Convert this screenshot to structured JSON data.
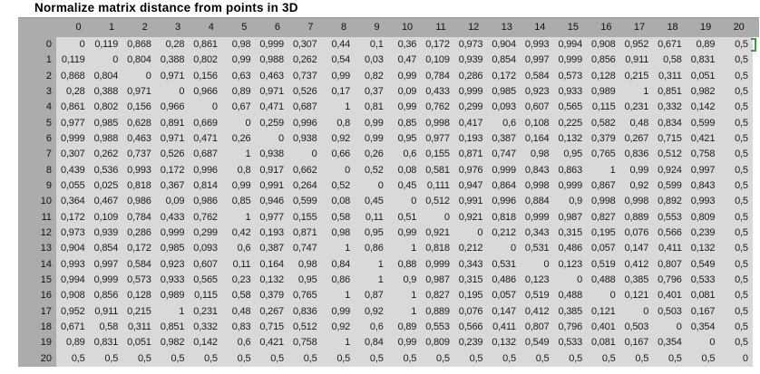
{
  "title": "Normalize matrix distance from points in 3D",
  "colors": {
    "header_bg": "#acacac",
    "body_bg": "#d9d9d9",
    "selection_green": "#3e9b47",
    "text": "#1a1a1a"
  },
  "table": {
    "col_headers": [
      "0",
      "1",
      "2",
      "3",
      "4",
      "5",
      "6",
      "7",
      "8",
      "9",
      "10",
      "11",
      "12",
      "13",
      "14",
      "15",
      "16",
      "17",
      "18",
      "19",
      "20"
    ],
    "row_headers": [
      "0",
      "1",
      "2",
      "3",
      "4",
      "5",
      "6",
      "7",
      "8",
      "9",
      "10",
      "11",
      "12",
      "13",
      "14",
      "15",
      "16",
      "17",
      "18",
      "19",
      "20"
    ],
    "rows": [
      [
        "0",
        "0,119",
        "0,868",
        "0,28",
        "0,861",
        "0,98",
        "0,999",
        "0,307",
        "0,44",
        "0,1",
        "0,36",
        "0,172",
        "0,973",
        "0,904",
        "0,993",
        "0,994",
        "0,908",
        "0,952",
        "0,671",
        "0,89",
        "0,5"
      ],
      [
        "0,119",
        "0",
        "0,804",
        "0,388",
        "0,802",
        "0,99",
        "0,988",
        "0,262",
        "0,54",
        "0,03",
        "0,47",
        "0,109",
        "0,939",
        "0,854",
        "0,997",
        "0,999",
        "0,856",
        "0,911",
        "0,58",
        "0,831",
        "0,5"
      ],
      [
        "0,868",
        "0,804",
        "0",
        "0,971",
        "0,156",
        "0,63",
        "0,463",
        "0,737",
        "0,99",
        "0,82",
        "0,99",
        "0,784",
        "0,286",
        "0,172",
        "0,584",
        "0,573",
        "0,128",
        "0,215",
        "0,311",
        "0,051",
        "0,5"
      ],
      [
        "0,28",
        "0,388",
        "0,971",
        "0",
        "0,966",
        "0,89",
        "0,971",
        "0,526",
        "0,17",
        "0,37",
        "0,09",
        "0,433",
        "0,999",
        "0,985",
        "0,923",
        "0,933",
        "0,989",
        "1",
        "0,851",
        "0,982",
        "0,5"
      ],
      [
        "0,861",
        "0,802",
        "0,156",
        "0,966",
        "0",
        "0,67",
        "0,471",
        "0,687",
        "1",
        "0,81",
        "0,99",
        "0,762",
        "0,299",
        "0,093",
        "0,607",
        "0,565",
        "0,115",
        "0,231",
        "0,332",
        "0,142",
        "0,5"
      ],
      [
        "0,977",
        "0,985",
        "0,628",
        "0,891",
        "0,669",
        "0",
        "0,259",
        "0,996",
        "0,8",
        "0,99",
        "0,85",
        "0,998",
        "0,417",
        "0,6",
        "0,108",
        "0,225",
        "0,582",
        "0,48",
        "0,834",
        "0,599",
        "0,5"
      ],
      [
        "0,999",
        "0,988",
        "0,463",
        "0,971",
        "0,471",
        "0,26",
        "0",
        "0,938",
        "0,92",
        "0,99",
        "0,95",
        "0,977",
        "0,193",
        "0,387",
        "0,164",
        "0,132",
        "0,379",
        "0,267",
        "0,715",
        "0,421",
        "0,5"
      ],
      [
        "0,307",
        "0,262",
        "0,737",
        "0,526",
        "0,687",
        "1",
        "0,938",
        "0",
        "0,66",
        "0,26",
        "0,6",
        "0,155",
        "0,871",
        "0,747",
        "0,98",
        "0,95",
        "0,765",
        "0,836",
        "0,512",
        "0,758",
        "0,5"
      ],
      [
        "0,439",
        "0,536",
        "0,993",
        "0,172",
        "0,996",
        "0,8",
        "0,917",
        "0,662",
        "0",
        "0,52",
        "0,08",
        "0,581",
        "0,976",
        "0,999",
        "0,843",
        "0,863",
        "1",
        "0,99",
        "0,924",
        "0,997",
        "0,5"
      ],
      [
        "0,055",
        "0,025",
        "0,818",
        "0,367",
        "0,814",
        "0,99",
        "0,991",
        "0,264",
        "0,52",
        "0",
        "0,45",
        "0,111",
        "0,947",
        "0,864",
        "0,998",
        "0,999",
        "0,867",
        "0,92",
        "0,599",
        "0,843",
        "0,5"
      ],
      [
        "0,364",
        "0,467",
        "0,986",
        "0,09",
        "0,986",
        "0,85",
        "0,946",
        "0,599",
        "0,08",
        "0,45",
        "0",
        "0,512",
        "0,991",
        "0,996",
        "0,884",
        "0,9",
        "0,998",
        "0,998",
        "0,892",
        "0,993",
        "0,5"
      ],
      [
        "0,172",
        "0,109",
        "0,784",
        "0,433",
        "0,762",
        "1",
        "0,977",
        "0,155",
        "0,58",
        "0,11",
        "0,51",
        "0",
        "0,921",
        "0,818",
        "0,999",
        "0,987",
        "0,827",
        "0,889",
        "0,553",
        "0,809",
        "0,5"
      ],
      [
        "0,973",
        "0,939",
        "0,286",
        "0,999",
        "0,299",
        "0,42",
        "0,193",
        "0,871",
        "0,98",
        "0,95",
        "0,99",
        "0,921",
        "0",
        "0,212",
        "0,343",
        "0,315",
        "0,195",
        "0,076",
        "0,566",
        "0,239",
        "0,5"
      ],
      [
        "0,904",
        "0,854",
        "0,172",
        "0,985",
        "0,093",
        "0,6",
        "0,387",
        "0,747",
        "1",
        "0,86",
        "1",
        "0,818",
        "0,212",
        "0",
        "0,531",
        "0,486",
        "0,057",
        "0,147",
        "0,411",
        "0,132",
        "0,5"
      ],
      [
        "0,993",
        "0,997",
        "0,584",
        "0,923",
        "0,607",
        "0,11",
        "0,164",
        "0,98",
        "0,84",
        "1",
        "0,88",
        "0,999",
        "0,343",
        "0,531",
        "0",
        "0,123",
        "0,519",
        "0,412",
        "0,807",
        "0,549",
        "0,5"
      ],
      [
        "0,994",
        "0,999",
        "0,573",
        "0,933",
        "0,565",
        "0,23",
        "0,132",
        "0,95",
        "0,86",
        "1",
        "0,9",
        "0,987",
        "0,315",
        "0,486",
        "0,123",
        "0",
        "0,488",
        "0,385",
        "0,796",
        "0,533",
        "0,5"
      ],
      [
        "0,908",
        "0,856",
        "0,128",
        "0,989",
        "0,115",
        "0,58",
        "0,379",
        "0,765",
        "1",
        "0,87",
        "1",
        "0,827",
        "0,195",
        "0,057",
        "0,519",
        "0,488",
        "0",
        "0,121",
        "0,401",
        "0,081",
        "0,5"
      ],
      [
        "0,952",
        "0,911",
        "0,215",
        "1",
        "0,231",
        "0,48",
        "0,267",
        "0,836",
        "0,99",
        "0,92",
        "1",
        "0,889",
        "0,076",
        "0,147",
        "0,412",
        "0,385",
        "0,121",
        "0",
        "0,503",
        "0,167",
        "0,5"
      ],
      [
        "0,671",
        "0,58",
        "0,311",
        "0,851",
        "0,332",
        "0,83",
        "0,715",
        "0,512",
        "0,92",
        "0,6",
        "0,89",
        "0,553",
        "0,566",
        "0,411",
        "0,807",
        "0,796",
        "0,401",
        "0,503",
        "0",
        "0,354",
        "0,5"
      ],
      [
        "0,89",
        "0,831",
        "0,051",
        "0,982",
        "0,142",
        "0,6",
        "0,421",
        "0,758",
        "1",
        "0,84",
        "0,99",
        "0,809",
        "0,239",
        "0,132",
        "0,549",
        "0,533",
        "0,081",
        "0,167",
        "0,354",
        "0",
        "0,5"
      ],
      [
        "0,5",
        "0,5",
        "0,5",
        "0,5",
        "0,5",
        "0,5",
        "0,5",
        "0,5",
        "0,5",
        "0,5",
        "0,5",
        "0,5",
        "0,5",
        "0,5",
        "0,5",
        "0,5",
        "0,5",
        "0,5",
        "0,5",
        "0,5",
        "0"
      ]
    ]
  }
}
